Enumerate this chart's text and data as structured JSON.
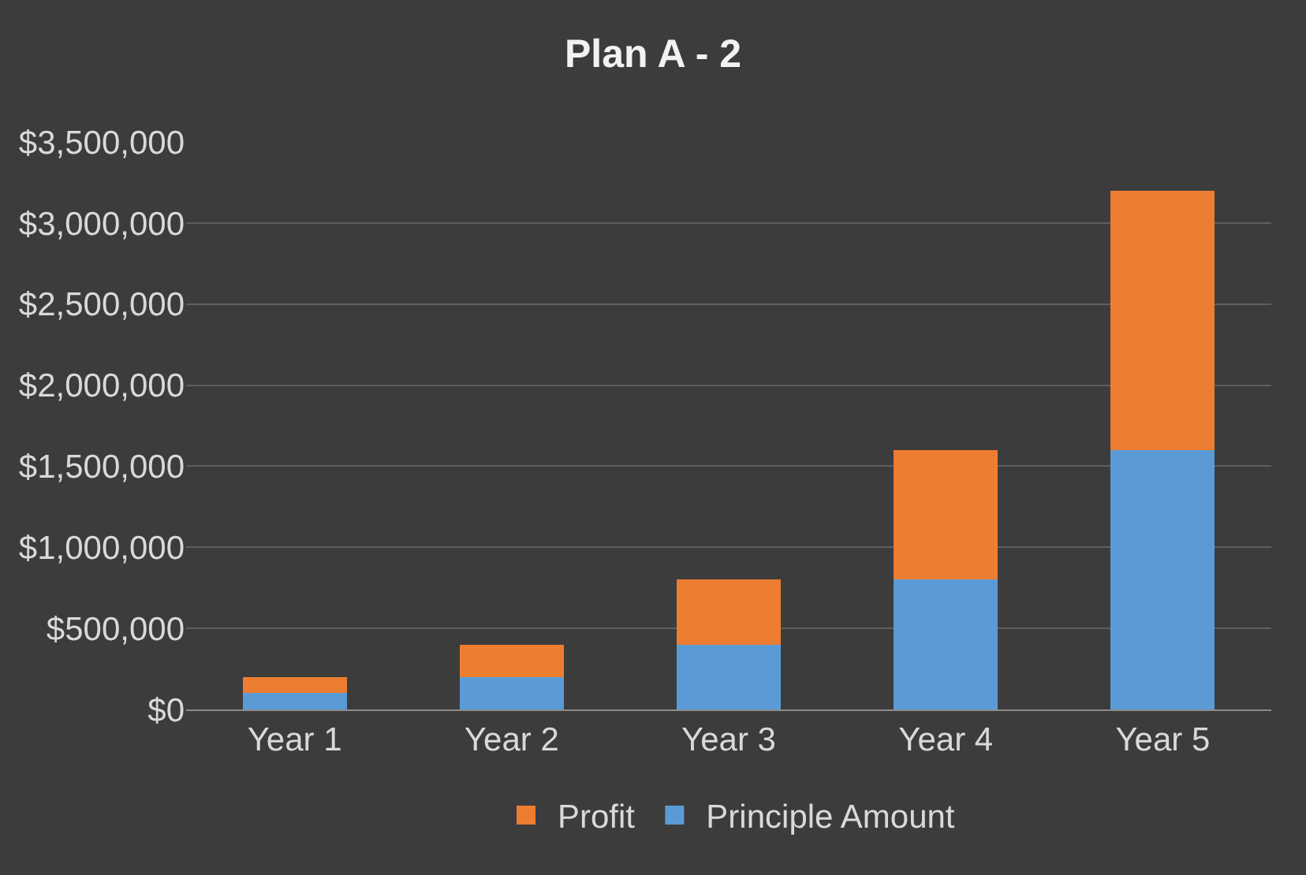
{
  "chart_data": {
    "type": "bar",
    "title": "Plan A - 2",
    "stacked": true,
    "categories": [
      "Year 1",
      "Year 2",
      "Year 3",
      "Year 4",
      "Year 5"
    ],
    "series": [
      {
        "name": "Principle Amount",
        "color": "#5b9bd5",
        "values": [
          100000,
          200000,
          400000,
          800000,
          1600000
        ]
      },
      {
        "name": "Profit",
        "color": "#ed7d31",
        "values": [
          100000,
          200000,
          400000,
          800000,
          1600000
        ]
      }
    ],
    "ylim": [
      0,
      3500000
    ],
    "yticks": [
      {
        "value": 0,
        "label": "$0"
      },
      {
        "value": 500000,
        "label": "$500,000"
      },
      {
        "value": 1000000,
        "label": "$1,000,000"
      },
      {
        "value": 1500000,
        "label": "$1,500,000"
      },
      {
        "value": 2000000,
        "label": "$2,000,000"
      },
      {
        "value": 2500000,
        "label": "$2,500,000"
      },
      {
        "value": 3000000,
        "label": "$3,000,000"
      },
      {
        "value": 3500000,
        "label": "$3,500,000"
      }
    ],
    "grid": "y",
    "legend": "bottom"
  }
}
